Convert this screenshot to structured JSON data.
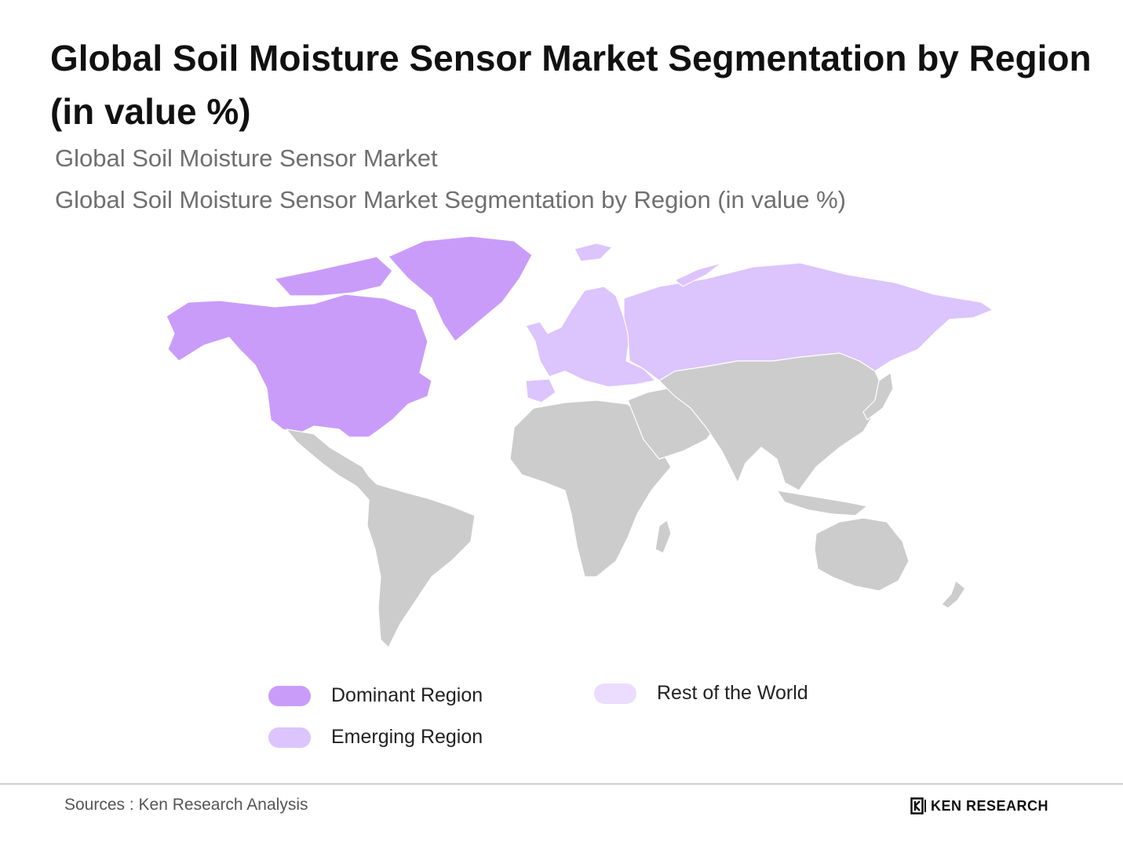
{
  "title": "Global Soil Moisture Sensor Market Segmentation by Region (in value %)",
  "subtitle_1": "Global Soil Moisture Sensor Market",
  "subtitle_2": "Global Soil Moisture Sensor Market Segmentation by Region (in value %)",
  "map": {
    "regions": [
      {
        "name": "North America",
        "category": "dominant"
      },
      {
        "name": "Greenland",
        "category": "dominant"
      },
      {
        "name": "Europe",
        "category": "emerging"
      },
      {
        "name": "Russia",
        "category": "emerging"
      },
      {
        "name": "Latin America",
        "category": "other"
      },
      {
        "name": "Africa",
        "category": "other"
      },
      {
        "name": "Middle East",
        "category": "other"
      },
      {
        "name": "Asia",
        "category": "other"
      },
      {
        "name": "Oceania",
        "category": "other"
      }
    ],
    "colors": {
      "dominant": "#c99cfa",
      "emerging": "#dcc4fc",
      "rest": "#ecdcfd",
      "other": "#cccccc",
      "border": "#ffffff"
    }
  },
  "legend": {
    "dominant": {
      "label": "Dominant Region",
      "color": "#c99cfa"
    },
    "emerging": {
      "label": "Emerging Region",
      "color": "#dcc4fc"
    },
    "rest": {
      "label": "Rest of the World",
      "color": "#ecdcfd"
    }
  },
  "source": "Sources : Ken Research Analysis",
  "brand": {
    "logo_icon": "ken-research-logo-icon",
    "name": "KEN RESEARCH"
  }
}
